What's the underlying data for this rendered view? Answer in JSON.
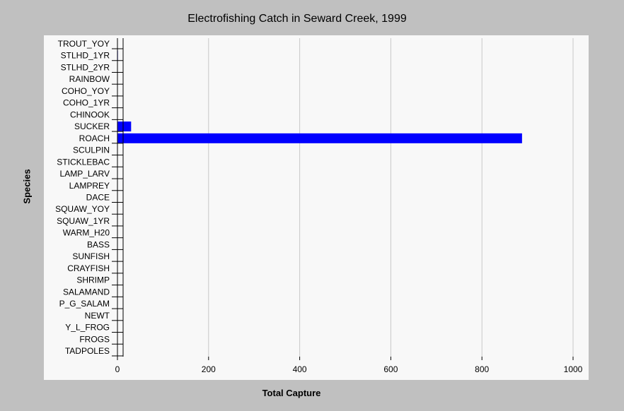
{
  "chart_data": {
    "type": "bar",
    "orientation": "horizontal",
    "title": "Electrofishing Catch in Seward Creek, 1999",
    "xlabel": "Total Capture",
    "ylabel": "Species",
    "xlim": [
      0,
      1000
    ],
    "xticks": [
      0,
      200,
      400,
      600,
      800,
      1000
    ],
    "grid": "vertical",
    "bar_color": "#0000ff",
    "categories": [
      "TROUT_YOY",
      "STLHD_1YR",
      "STLHD_2YR",
      "RAINBOW",
      "COHO_YOY",
      "COHO_1YR",
      "CHINOOK",
      "SUCKER",
      "ROACH",
      "SCULPIN",
      "STICKLEBAC",
      "LAMP_LARV",
      "LAMPREY",
      "DACE",
      "SQUAW_YOY",
      "SQUAW_1YR",
      "WARM_H20",
      "BASS",
      "SUNFISH",
      "CRAYFISH",
      "SHRIMP",
      "SALAMAND",
      "P_G_SALAM",
      "NEWT",
      "Y_L_FROG",
      "FROGS",
      "TADPOLES"
    ],
    "values": [
      0,
      1,
      0,
      0,
      0,
      0,
      0,
      30,
      888,
      0,
      0,
      0,
      0,
      0,
      0,
      0,
      0,
      0,
      0,
      0,
      0,
      0,
      0,
      0,
      0,
      0,
      0
    ]
  }
}
